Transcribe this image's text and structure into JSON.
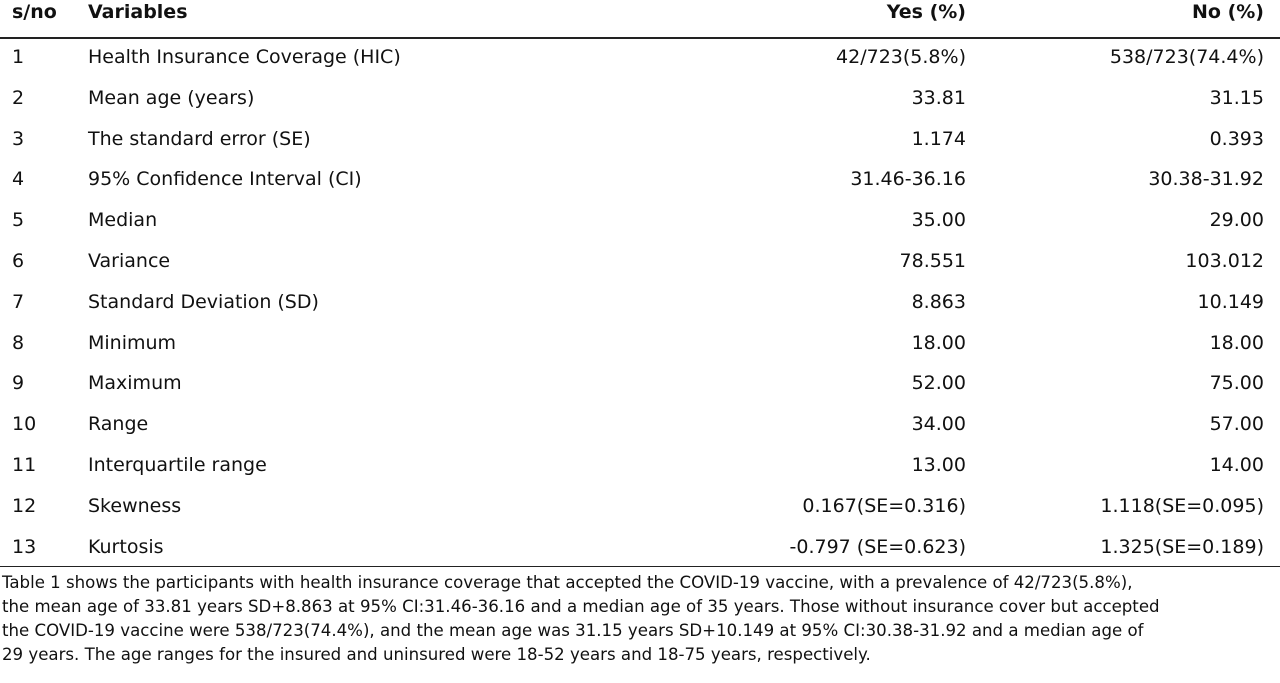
{
  "table": {
    "header": [
      "s/no",
      "Variables",
      "Yes (%)",
      "No (%)"
    ],
    "rows": [
      [
        "1",
        "Health Insurance Coverage (HIC)",
        "42/723(5.8%)",
        "538/723(74.4%)"
      ],
      [
        "2",
        "Mean age (years)",
        "33.81",
        "31.15"
      ],
      [
        "3",
        "The standard error (SE)",
        "1.174",
        "0.393"
      ],
      [
        "4",
        "95% Confidence Interval (CI)",
        "31.46-36.16",
        "30.38-31.92"
      ],
      [
        "5",
        "Median",
        "35.00",
        "29.00"
      ],
      [
        "6",
        "Variance",
        "78.551",
        "103.012"
      ],
      [
        "7",
        "Standard Deviation (SD)",
        "8.863",
        "10.149"
      ],
      [
        "8",
        "Minimum",
        "18.00",
        "18.00"
      ],
      [
        "9",
        "Maximum",
        "52.00",
        "75.00"
      ],
      [
        "10",
        "Range",
        "34.00",
        "57.00"
      ],
      [
        "11",
        "Interquartile range",
        "13.00",
        "14.00"
      ],
      [
        "12",
        "Skewness",
        "0.167(SE=0.316)",
        "1.118(SE=0.095)"
      ],
      [
        "13",
        "Kurtosis",
        "-0.797 (SE=0.623)",
        "1.325(SE=0.189)"
      ]
    ],
    "footnote": [
      "Table 1 shows the participants with health insurance coverage that accepted the COVID-19 vaccine, with a prevalence of 42/723(5.8%),",
      "the mean age of 33.81 years SD+8.863 at 95% CI:31.46-36.16 and a median age of 35 years. Those without insurance cover but accepted",
      "the COVID-19 vaccine were 538/723(74.4%), and the mean age was 31.15 years SD+10.149 at 95% CI:30.38-31.92 and a median age of",
      "29 years. The age ranges for the insured and uninsured were 18-52 years and 18-75 years, respectively."
    ]
  }
}
